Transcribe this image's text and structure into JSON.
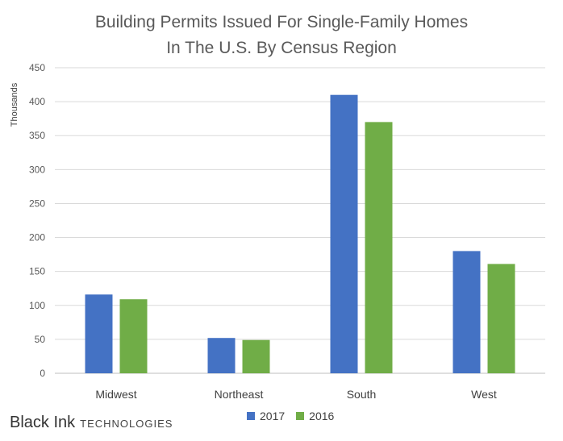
{
  "chart_data": {
    "type": "bar",
    "title": [
      "Building Permits Issued For Single-Family Homes",
      "In The U.S. By Census Region"
    ],
    "ylabel": "Thousands",
    "xlabel": "",
    "categories": [
      "Midwest",
      "Northeast",
      "South",
      "West"
    ],
    "series": [
      {
        "name": "2017",
        "color": "#4472C4",
        "values": [
          116,
          52,
          410,
          180
        ]
      },
      {
        "name": "2016",
        "color": "#70AD47",
        "values": [
          109,
          49,
          370,
          161
        ]
      }
    ],
    "ylim": [
      0,
      450
    ],
    "yticks": [
      0,
      50,
      100,
      150,
      200,
      250,
      300,
      350,
      400,
      450
    ],
    "grid": true,
    "legend_position": "bottom"
  },
  "brand": {
    "name": "Black Ink",
    "suffix": "TECHNOLOGIES"
  }
}
